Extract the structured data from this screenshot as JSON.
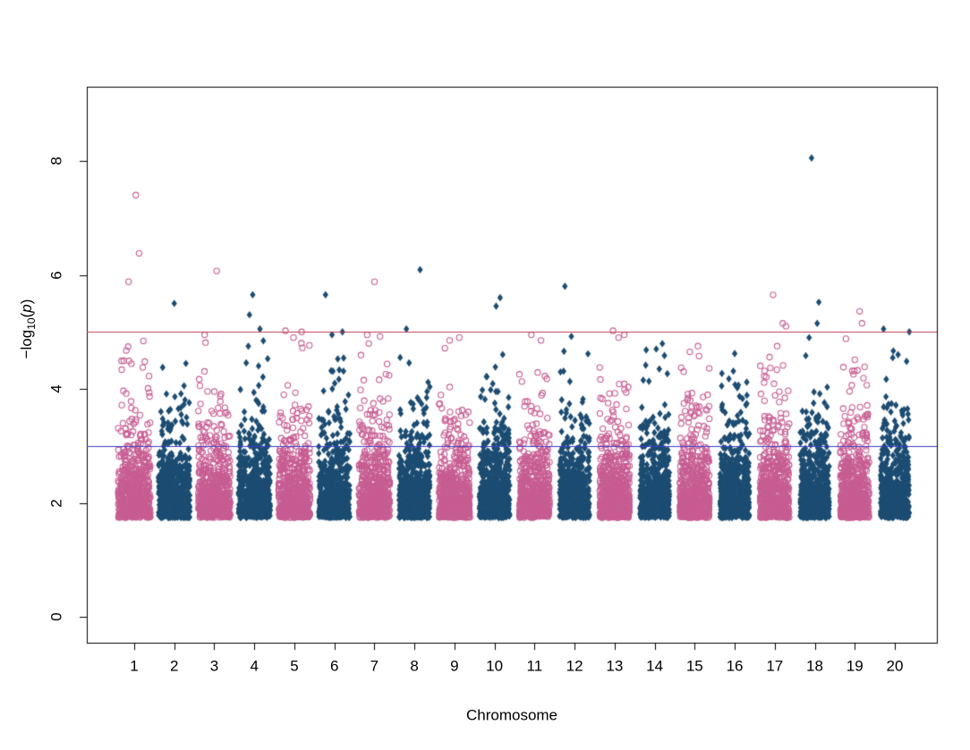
{
  "chart_data": {
    "type": "scatter",
    "subtype": "manhattan-plot",
    "title": "",
    "xlabel": "Chromosome",
    "ylabel": "-log10(p)",
    "ylabel_parts": {
      "main": "−log",
      "sub": "10",
      "open": "(",
      "var": "p",
      "close": ")"
    },
    "n_chromosomes": 20,
    "x_categories": [
      "1",
      "2",
      "3",
      "4",
      "5",
      "6",
      "7",
      "8",
      "9",
      "10",
      "11",
      "12",
      "13",
      "14",
      "15",
      "16",
      "17",
      "18",
      "19",
      "20"
    ],
    "yticks": [
      0,
      2,
      4,
      6,
      8
    ],
    "ylim": [
      -0.45,
      9.3
    ],
    "grid": false,
    "legend": false,
    "background_color": "#ffffff",
    "axis_color": "#000000",
    "point_styles": {
      "odd_chromosomes": {
        "shape": "open-circle",
        "color": "#C75D92"
      },
      "even_chromosomes": {
        "shape": "filled-diamond",
        "color": "#1C4C72"
      }
    },
    "lines": [
      {
        "name": "red-threshold-line",
        "y": 5,
        "color": "#C03E52"
      },
      {
        "name": "blue-threshold-line",
        "y": 3,
        "color": "#3B3BC4"
      }
    ],
    "bulk": {
      "description": "dense column of points per chromosome, -log10(p) from ~1.75 thinning out to ~4.8",
      "points_per_chromosome": 640,
      "min_value": 1.74,
      "exp_mean": 0.5,
      "resample_above": 4.85,
      "seed": 20240717
    },
    "notable_points": [
      {
        "chr": 1,
        "value": 7.4,
        "offset": 0.1
      },
      {
        "chr": 1,
        "value": 6.38,
        "offset": 0.3
      },
      {
        "chr": 1,
        "value": 5.88,
        "offset": -0.35
      },
      {
        "chr": 2,
        "value": 5.5,
        "offset": 0.0
      },
      {
        "chr": 3,
        "value": 6.07,
        "offset": 0.15
      },
      {
        "chr": 3,
        "value": 4.95,
        "offset": -0.6
      },
      {
        "chr": 4,
        "value": 5.65,
        "offset": -0.1
      },
      {
        "chr": 4,
        "value": 5.3,
        "offset": -0.3
      },
      {
        "chr": 4,
        "value": 5.05,
        "offset": 0.35
      },
      {
        "chr": 5,
        "value": 5.02,
        "offset": -0.55
      },
      {
        "chr": 5,
        "value": 5.0,
        "offset": 0.45
      },
      {
        "chr": 5,
        "value": 4.9,
        "offset": -0.05
      },
      {
        "chr": 6,
        "value": 5.65,
        "offset": -0.55
      },
      {
        "chr": 6,
        "value": 5.0,
        "offset": 0.5
      },
      {
        "chr": 6,
        "value": 4.95,
        "offset": -0.15
      },
      {
        "chr": 7,
        "value": 5.88,
        "offset": 0.0
      },
      {
        "chr": 7,
        "value": 4.95,
        "offset": -0.45
      },
      {
        "chr": 7,
        "value": 4.92,
        "offset": 0.35
      },
      {
        "chr": 8,
        "value": 6.09,
        "offset": 0.35
      },
      {
        "chr": 8,
        "value": 5.05,
        "offset": -0.5
      },
      {
        "chr": 9,
        "value": 4.9,
        "offset": 0.3
      },
      {
        "chr": 9,
        "value": 4.85,
        "offset": -0.3
      },
      {
        "chr": 10,
        "value": 5.6,
        "offset": 0.35
      },
      {
        "chr": 10,
        "value": 5.45,
        "offset": 0.1
      },
      {
        "chr": 11,
        "value": 4.95,
        "offset": -0.2
      },
      {
        "chr": 11,
        "value": 4.85,
        "offset": 0.4
      },
      {
        "chr": 12,
        "value": 5.8,
        "offset": -0.6
      },
      {
        "chr": 12,
        "value": 4.92,
        "offset": -0.2
      },
      {
        "chr": 13,
        "value": 5.02,
        "offset": -0.1
      },
      {
        "chr": 13,
        "value": 4.95,
        "offset": 0.6
      },
      {
        "chr": 13,
        "value": 4.9,
        "offset": 0.25
      },
      {
        "chr": 14,
        "value": 4.7,
        "offset": 0.1
      },
      {
        "chr": 15,
        "value": 4.75,
        "offset": 0.2
      },
      {
        "chr": 15,
        "value": 4.65,
        "offset": -0.3
      },
      {
        "chr": 16,
        "value": 4.62,
        "offset": 0.0
      },
      {
        "chr": 17,
        "value": 5.65,
        "offset": -0.1
      },
      {
        "chr": 17,
        "value": 5.15,
        "offset": 0.5
      },
      {
        "chr": 17,
        "value": 5.1,
        "offset": 0.7
      },
      {
        "chr": 17,
        "value": 4.75,
        "offset": 0.15
      },
      {
        "chr": 18,
        "value": 8.05,
        "offset": -0.2
      },
      {
        "chr": 18,
        "value": 5.52,
        "offset": 0.25
      },
      {
        "chr": 18,
        "value": 5.15,
        "offset": 0.15
      },
      {
        "chr": 18,
        "value": 4.9,
        "offset": -0.35
      },
      {
        "chr": 19,
        "value": 5.36,
        "offset": 0.3
      },
      {
        "chr": 19,
        "value": 5.15,
        "offset": 0.45
      },
      {
        "chr": 19,
        "value": 4.88,
        "offset": -0.55
      },
      {
        "chr": 20,
        "value": 5.05,
        "offset": -0.7
      },
      {
        "chr": 20,
        "value": 5.0,
        "offset": 0.9
      },
      {
        "chr": 20,
        "value": 4.6,
        "offset": 0.2
      }
    ]
  }
}
